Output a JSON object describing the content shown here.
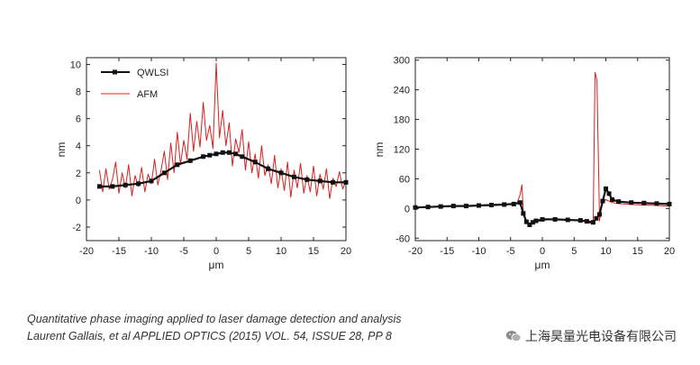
{
  "chart_data": [
    {
      "type": "line",
      "title": "",
      "xlabel": "μm",
      "ylabel": "nm",
      "xlim": [
        -20,
        20
      ],
      "ylim": [
        -3,
        10.5
      ],
      "xticks": [
        -20,
        -15,
        -10,
        -5,
        0,
        5,
        10,
        15,
        20
      ],
      "yticks": [
        -2,
        0,
        2,
        4,
        6,
        8,
        10
      ],
      "legend_position": "top-left",
      "series": [
        {
          "name": "QWLSI",
          "color": "#111111",
          "style": "line-markers",
          "x": [
            -18,
            -16,
            -14,
            -12,
            -10,
            -8,
            -6,
            -4,
            -2,
            -1,
            0,
            1,
            2,
            3,
            4,
            6,
            8,
            10,
            12,
            14,
            16,
            18,
            20
          ],
          "y": [
            1.0,
            1.0,
            1.1,
            1.2,
            1.4,
            2.0,
            2.6,
            2.9,
            3.2,
            3.3,
            3.4,
            3.5,
            3.5,
            3.4,
            3.2,
            2.8,
            2.3,
            2.0,
            1.7,
            1.5,
            1.4,
            1.3,
            1.3
          ]
        },
        {
          "name": "AFM",
          "color": "#d62020",
          "style": "line",
          "x": [
            -18,
            -17.5,
            -17,
            -16.5,
            -16,
            -15.5,
            -15,
            -14.5,
            -14,
            -13.5,
            -13,
            -12.5,
            -12,
            -11.5,
            -11,
            -10.5,
            -10,
            -9.5,
            -9,
            -8.5,
            -8,
            -7.5,
            -7,
            -6.5,
            -6,
            -5.5,
            -5,
            -4.5,
            -4,
            -3.5,
            -3,
            -2.5,
            -2,
            -1.5,
            -1,
            -0.5,
            0,
            0.5,
            1,
            1.5,
            2,
            2.5,
            3,
            3.5,
            4,
            4.5,
            5,
            5.5,
            6,
            6.5,
            7,
            7.5,
            8,
            8.5,
            9,
            9.5,
            10,
            10.5,
            11,
            11.5,
            12,
            12.5,
            13,
            13.5,
            14,
            14.5,
            15,
            15.5,
            16,
            16.5,
            17,
            17.5,
            18,
            18.5,
            19,
            19.5,
            20
          ],
          "y": [
            2.2,
            0.6,
            2.3,
            0.8,
            1.5,
            2.8,
            0.5,
            2.0,
            0.9,
            2.6,
            0.3,
            1.8,
            1.0,
            2.4,
            0.6,
            1.9,
            1.2,
            3.0,
            1.1,
            2.2,
            3.6,
            1.5,
            4.2,
            2.0,
            5.0,
            2.6,
            4.4,
            3.0,
            6.4,
            3.6,
            5.8,
            3.9,
            7.2,
            4.4,
            5.5,
            3.8,
            10.1,
            4.6,
            6.6,
            4.0,
            5.7,
            2.5,
            4.5,
            3.5,
            5.2,
            2.2,
            4.3,
            2.0,
            3.4,
            1.6,
            4.0,
            1.8,
            2.6,
            1.2,
            3.3,
            0.9,
            2.3,
            0.7,
            2.8,
            0.2,
            2.2,
            0.9,
            2.7,
            0.5,
            1.8,
            0.6,
            2.5,
            0.3,
            1.9,
            0.8,
            2.3,
            0.1,
            1.6,
            1.0,
            2.1,
            0.8,
            1.4
          ]
        }
      ]
    },
    {
      "type": "line",
      "title": "",
      "xlabel": "μm",
      "ylabel": "nm",
      "xlim": [
        -20,
        20
      ],
      "ylim": [
        -65,
        305
      ],
      "xticks": [
        -20,
        -15,
        -10,
        -5,
        0,
        5,
        10,
        15,
        20
      ],
      "yticks": [
        -60,
        0,
        60,
        120,
        180,
        240,
        300
      ],
      "legend_position": "none",
      "series": [
        {
          "name": "QWLSI",
          "color": "#111111",
          "style": "line-markers",
          "x": [
            -20,
            -18,
            -16,
            -14,
            -12,
            -10,
            -8,
            -6,
            -4.5,
            -3.5,
            -3,
            -2.5,
            -2,
            -1.5,
            -1,
            0,
            2,
            4,
            6,
            7,
            8,
            8.5,
            9,
            9.5,
            10,
            10.5,
            11,
            12,
            14,
            16,
            18,
            20
          ],
          "y": [
            2,
            3,
            4,
            5,
            5,
            6,
            7,
            8,
            9,
            12,
            -10,
            -27,
            -33,
            -28,
            -25,
            -22,
            -22,
            -23,
            -24,
            -26,
            -28,
            -20,
            -12,
            15,
            40,
            30,
            18,
            14,
            12,
            11,
            10,
            9
          ]
        },
        {
          "name": "AFM",
          "color": "#d62020",
          "style": "line",
          "x": [
            -20,
            -18,
            -16,
            -14,
            -12,
            -10,
            -8,
            -6,
            -4,
            -3.5,
            -3.2,
            -3,
            -2.5,
            -2,
            -1,
            0,
            2,
            4,
            6,
            7,
            8,
            8.3,
            8.6,
            9,
            9.3,
            10,
            11,
            12,
            14,
            16,
            18,
            20
          ],
          "y": [
            2,
            3,
            4,
            4,
            5,
            5,
            6,
            7,
            10,
            28,
            48,
            -10,
            -30,
            -30,
            -27,
            -24,
            -22,
            -23,
            -25,
            -27,
            -32,
            275,
            260,
            -25,
            10,
            18,
            12,
            10,
            8,
            7,
            6,
            5
          ]
        }
      ]
    }
  ],
  "caption": {
    "line1": "Quantitative phase imaging applied to laser damage detection and analysis",
    "line2": "Laurent Gallais, et al APPLIED OPTICS (2015) VOL. 54, ISSUE 28, PP 8"
  },
  "watermark": {
    "text": "上海昊量光电设备有限公司",
    "icon": "wechat-icon"
  },
  "colors": {
    "qwlsi": "#111111",
    "afm": "#d62020",
    "axis": "#222222"
  }
}
